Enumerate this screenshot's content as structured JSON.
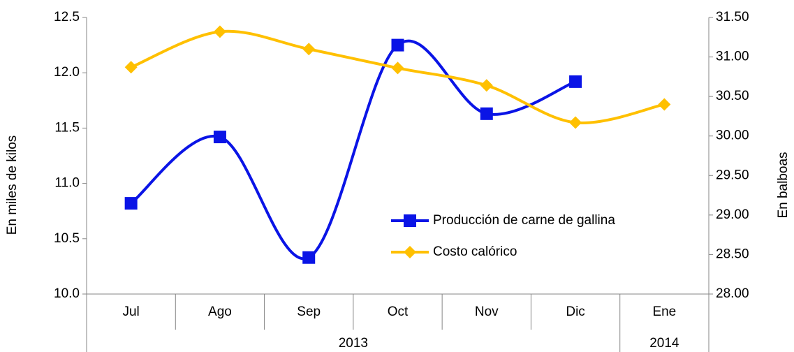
{
  "chart_data": {
    "type": "line",
    "categories": [
      "Jul",
      "Ago",
      "Sep",
      "Oct",
      "Nov",
      "Dic",
      "Ene"
    ],
    "groups": [
      "2013",
      "2014"
    ],
    "ylabel": "En miles de kilos",
    "y2label": "En balboas",
    "ylim": [
      10.0,
      12.5
    ],
    "yticks": [
      {
        "value": 10,
        "label": "10.0"
      },
      10.5,
      {
        "value": 11,
        "label": "11.0"
      },
      11.5,
      {
        "value": 12,
        "label": "12.0"
      },
      12.5
    ],
    "y2lim": [
      28,
      31.5
    ],
    "y2ticks": [
      {
        "value": 28,
        "label": "28.00"
      },
      {
        "value": 28.5,
        "label": "28.50"
      },
      {
        "value": 29,
        "label": "29.00"
      },
      {
        "value": 29.5,
        "label": "29.50"
      },
      {
        "value": 30,
        "label": "30.00"
      },
      {
        "value": 30.5,
        "label": "30.50"
      },
      {
        "value": 31,
        "label": "31.00"
      },
      {
        "value": 31.5,
        "label": "31.50"
      }
    ],
    "smooth": true,
    "series": [
      {
        "name": "Producción de carne de gallina",
        "color": "#0a14e6",
        "marker": "square",
        "values": [
          10.82,
          11.42,
          10.33,
          12.25,
          11.63,
          11.92,
          null
        ]
      },
      {
        "name": "Costo calórico",
        "color": "#ffc000",
        "marker": "diamond",
        "axis": "y2",
        "values": [
          30.87,
          31.32,
          31.1,
          30.86,
          30.64,
          30.17,
          30.4
        ]
      }
    ]
  }
}
